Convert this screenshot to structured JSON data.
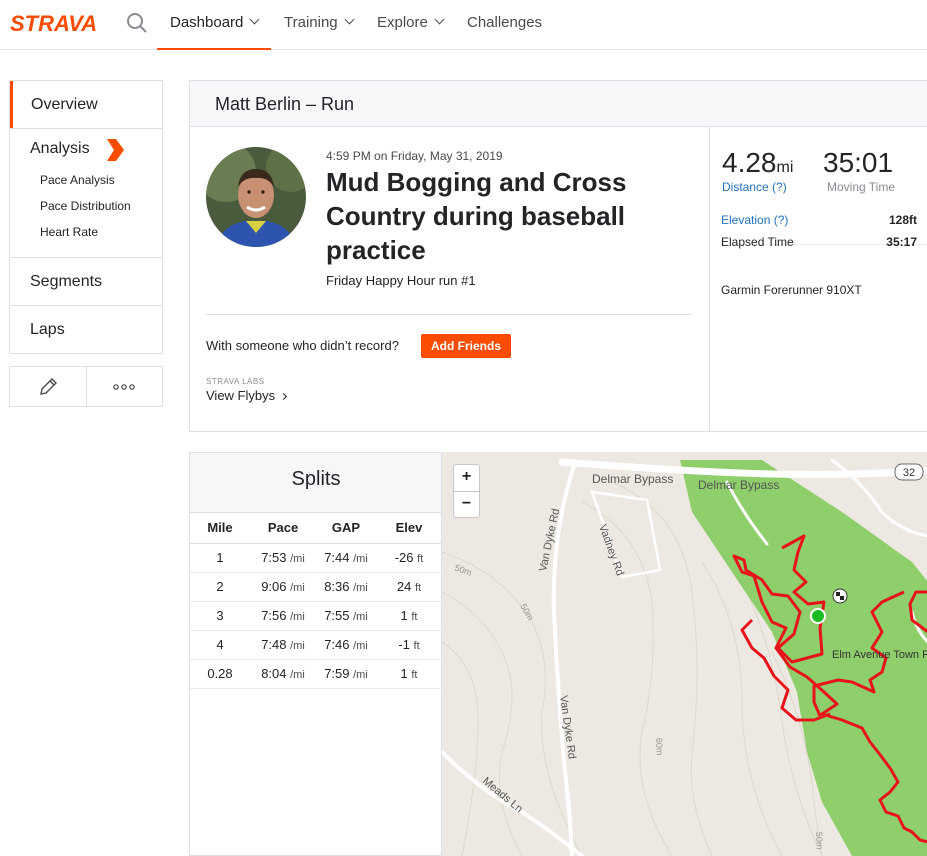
{
  "nav": {
    "logo": "STRAVA",
    "items": [
      {
        "label": "Dashboard"
      },
      {
        "label": "Training"
      },
      {
        "label": "Explore"
      },
      {
        "label": "Challenges"
      }
    ]
  },
  "sidebar": {
    "overview": "Overview",
    "analysis": "Analysis",
    "analysis_items": [
      "Pace Analysis",
      "Pace Distribution",
      "Heart Rate"
    ],
    "segments": "Segments",
    "laps": "Laps"
  },
  "activity": {
    "header": "Matt Berlin – Run",
    "timestamp": "4:59 PM on Friday, May 31, 2019",
    "title": "Mud Bogging and Cross Country during baseball practice",
    "description": "Friday Happy Hour run #1",
    "with_prompt": "With someone who didn’t record?",
    "add_friends": "Add Friends",
    "labs_label": "STRAVA LABS",
    "flyby": "View Flybys"
  },
  "stats": {
    "distance_value": "4.28",
    "distance_unit": "mi",
    "distance_label": "Distance (?)",
    "moving_time_value": "35:01",
    "moving_time_label": "Moving Time",
    "elevation_label": "Elevation (?)",
    "elevation_value": "128ft",
    "elapsed_label": "Elapsed Time",
    "elapsed_value": "35:17",
    "device": "Garmin Forerunner 910XT"
  },
  "splits": {
    "title": "Splits",
    "columns": [
      "Mile",
      "Pace",
      "GAP",
      "Elev"
    ],
    "pace_unit": "/mi",
    "elev_unit": "ft",
    "rows": [
      {
        "mile": "1",
        "pace": "7:53",
        "gap": "7:44",
        "elev": "-26"
      },
      {
        "mile": "2",
        "pace": "9:06",
        "gap": "8:36",
        "elev": "24"
      },
      {
        "mile": "3",
        "pace": "7:56",
        "gap": "7:55",
        "elev": "1"
      },
      {
        "mile": "4",
        "pace": "7:48",
        "gap": "7:46",
        "elev": "-1"
      },
      {
        "mile": "0.28",
        "pace": "8:04",
        "gap": "7:59",
        "elev": "1"
      }
    ]
  },
  "map": {
    "zoom_in": "+",
    "zoom_out": "−",
    "labels": {
      "delmar1": "Delmar Bypass",
      "delmar2": "Delmar Bypass",
      "vandyke1": "Van Dyke Rd",
      "vandyke2": "Van Dyke Rd",
      "vadney": "Vadney Rd",
      "meads": "Meads Ln",
      "park": "Elm Avenue Town Park",
      "route32": "32",
      "c1": "50m",
      "c2": "50m",
      "c3": "60m",
      "c4": "50m"
    },
    "colors": {
      "route": "#e8131a",
      "park": "#8fcf6b",
      "start": "#1bbb24"
    }
  },
  "colors": {
    "accent": "#fc4c02",
    "link": "#1e73be"
  }
}
